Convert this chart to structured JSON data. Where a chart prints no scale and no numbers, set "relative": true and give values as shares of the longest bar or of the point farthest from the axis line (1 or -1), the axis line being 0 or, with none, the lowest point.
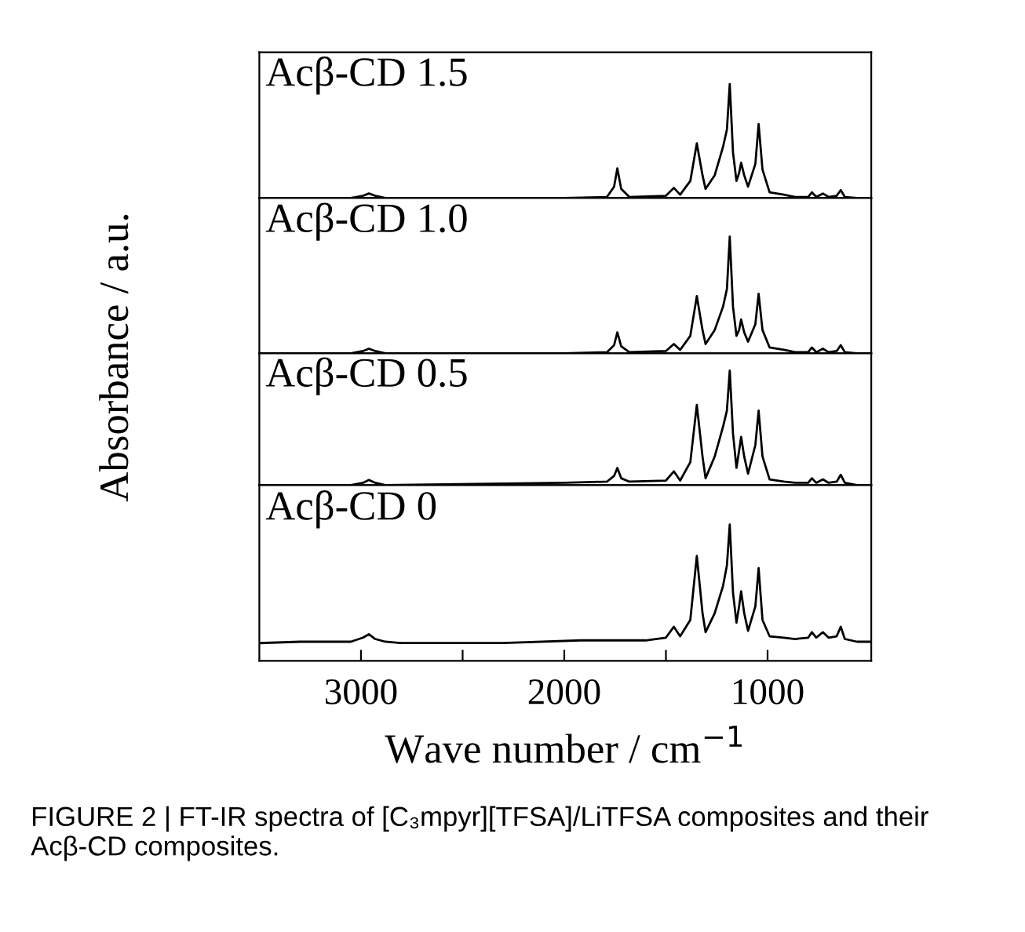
{
  "chart_data": [
    {
      "type": "line",
      "relative": true,
      "xlim": [
        3500,
        490
      ],
      "tick_labels": false,
      "ylabel": "Absorbance / a.u.",
      "annotations": [
        "Acβ-CD 1.5"
      ],
      "x": [
        3500,
        3050,
        2990,
        2961,
        2930,
        2880,
        2000,
        1790,
        1755,
        1739,
        1720,
        1680,
        1500,
        1461,
        1430,
        1380,
        1348,
        1320,
        1305,
        1260,
        1219,
        1200,
        1186,
        1170,
        1153,
        1140,
        1130,
        1115,
        1096,
        1060,
        1044,
        1025,
        990,
        920,
        864,
        800,
        782,
        760,
        728,
        700,
        660,
        640,
        620,
        560,
        490
      ],
      "series": [
        {
          "color": "#000000",
          "values": [
            0,
            0,
            0.02,
            0.04,
            0.02,
            0,
            0,
            0.01,
            0.1,
            0.26,
            0.08,
            0.01,
            0.02,
            0.09,
            0.03,
            0.15,
            0.48,
            0.2,
            0.08,
            0.2,
            0.45,
            0.6,
            1.0,
            0.4,
            0.15,
            0.22,
            0.31,
            0.2,
            0.1,
            0.3,
            0.65,
            0.25,
            0.05,
            0.03,
            0.01,
            0.01,
            0.05,
            0.01,
            0.04,
            0.01,
            0.02,
            0.07,
            0.01,
            0,
            0
          ]
        }
      ]
    },
    {
      "type": "line",
      "relative": true,
      "xlim": [
        3500,
        490
      ],
      "tick_labels": false,
      "annotations": [
        "Acβ-CD 1.0"
      ],
      "x": [
        3500,
        3050,
        2990,
        2961,
        2930,
        2880,
        2000,
        1790,
        1755,
        1739,
        1720,
        1680,
        1500,
        1461,
        1430,
        1380,
        1348,
        1320,
        1305,
        1260,
        1219,
        1200,
        1186,
        1170,
        1153,
        1140,
        1130,
        1115,
        1096,
        1060,
        1044,
        1025,
        990,
        920,
        864,
        800,
        782,
        760,
        728,
        700,
        660,
        640,
        620,
        560,
        490
      ],
      "series": [
        {
          "color": "#000000",
          "values": [
            0,
            0,
            0.02,
            0.04,
            0.02,
            0,
            0,
            0.01,
            0.07,
            0.18,
            0.06,
            0.01,
            0.02,
            0.08,
            0.03,
            0.15,
            0.49,
            0.2,
            0.08,
            0.2,
            0.4,
            0.55,
            1.0,
            0.4,
            0.15,
            0.2,
            0.29,
            0.18,
            0.1,
            0.25,
            0.51,
            0.2,
            0.05,
            0.03,
            0.01,
            0.01,
            0.05,
            0.01,
            0.04,
            0.01,
            0.02,
            0.07,
            0.01,
            0,
            0
          ]
        }
      ]
    },
    {
      "type": "line",
      "relative": true,
      "xlim": [
        3500,
        490
      ],
      "tick_labels": false,
      "annotations": [
        "Acβ-CD 0.5"
      ],
      "x": [
        3500,
        3050,
        2990,
        2961,
        2930,
        2880,
        2000,
        1790,
        1755,
        1739,
        1720,
        1680,
        1500,
        1461,
        1430,
        1380,
        1348,
        1320,
        1305,
        1260,
        1219,
        1200,
        1186,
        1170,
        1153,
        1140,
        1130,
        1115,
        1096,
        1060,
        1044,
        1025,
        990,
        920,
        864,
        800,
        782,
        760,
        728,
        700,
        660,
        640,
        620,
        560,
        490
      ],
      "series": [
        {
          "color": "#000000",
          "values": [
            0,
            0,
            0.02,
            0.045,
            0.02,
            0,
            0.02,
            0.03,
            0.08,
            0.15,
            0.06,
            0.03,
            0.04,
            0.12,
            0.04,
            0.2,
            0.7,
            0.25,
            0.06,
            0.25,
            0.51,
            0.65,
            1.0,
            0.45,
            0.15,
            0.3,
            0.42,
            0.25,
            0.1,
            0.35,
            0.65,
            0.25,
            0.05,
            0.03,
            0.02,
            0.02,
            0.06,
            0.02,
            0.05,
            0.02,
            0.03,
            0.09,
            0.02,
            0,
            0
          ]
        }
      ]
    },
    {
      "type": "line",
      "relative": true,
      "xlim": [
        3500,
        490
      ],
      "xticks": [
        3000,
        {
          "value": 2500,
          "label": null
        },
        2000,
        {
          "value": 1500,
          "label": null
        },
        1000
      ],
      "tick_labels": "x",
      "xlabel": "Wave number / cm$^{−1}$",
      "annotations": [
        "Acβ-CD 0",
        "FIGURE 2 | FT-IR spectra of [C₃mpyr][TFSA]/LiTFSA composites and their Acβ-CD composites."
      ],
      "x": [
        3500,
        3300,
        3050,
        2990,
        2961,
        2930,
        2880,
        2800,
        2300,
        1919,
        1800,
        1600,
        1500,
        1461,
        1430,
        1380,
        1348,
        1320,
        1305,
        1260,
        1219,
        1200,
        1186,
        1170,
        1153,
        1140,
        1130,
        1115,
        1096,
        1060,
        1044,
        1025,
        990,
        920,
        864,
        800,
        782,
        760,
        728,
        700,
        660,
        640,
        620,
        560,
        490
      ],
      "series": [
        {
          "color": "#000000",
          "values": [
            0.13,
            0.14,
            0.14,
            0.17,
            0.195,
            0.16,
            0.14,
            0.13,
            0.13,
            0.15,
            0.15,
            0.15,
            0.17,
            0.25,
            0.18,
            0.3,
            0.77,
            0.35,
            0.21,
            0.35,
            0.55,
            0.7,
            1.0,
            0.5,
            0.28,
            0.4,
            0.51,
            0.35,
            0.22,
            0.4,
            0.68,
            0.3,
            0.18,
            0.17,
            0.16,
            0.17,
            0.21,
            0.17,
            0.21,
            0.17,
            0.18,
            0.25,
            0.16,
            0.14,
            0.14
          ]
        }
      ]
    }
  ]
}
